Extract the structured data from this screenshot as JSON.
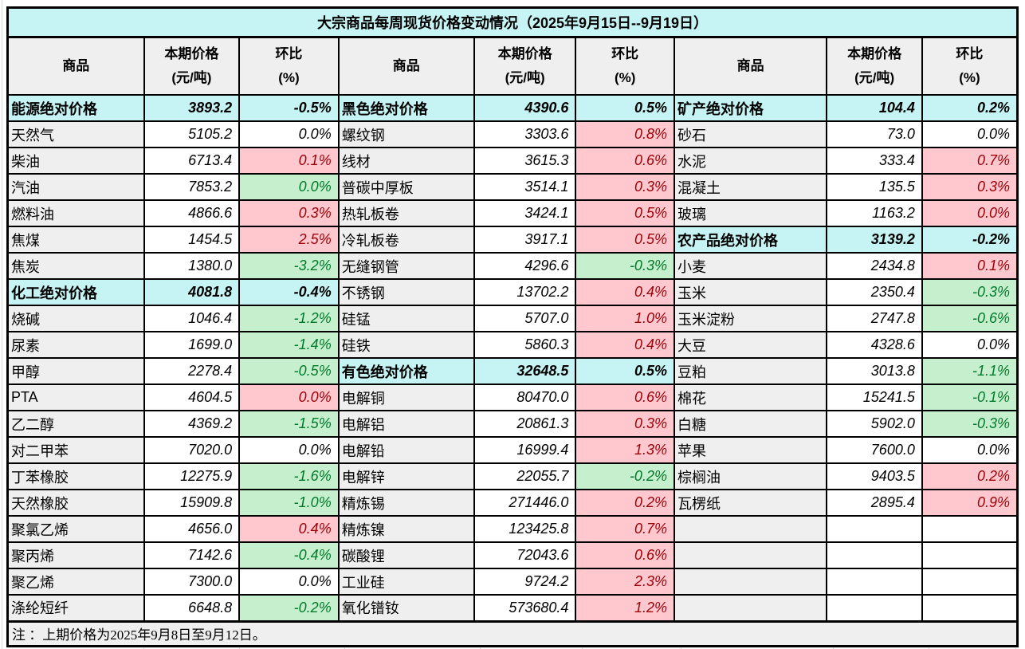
{
  "title": "大宗商品每周现货价格变动情况（2025年9月15日--9月19日）",
  "note": "注 ：上期价格为2025年9月8日至9月12日。",
  "columns": {
    "commodity": "商品",
    "price_line1": "本期价格",
    "price_line2": "(元/吨)",
    "pct_line1": "环比",
    "pct_line2": "(%)"
  },
  "colors": {
    "section_bg": "#c6f3f3",
    "header_bg": "#efefef",
    "up_bg": "#ffc7ce",
    "up_text": "#9c0006",
    "down_bg": "#c6efce",
    "down_text": "#007a29",
    "border": "#000000"
  },
  "groups": [
    {
      "rows": [
        {
          "name": "能源绝对价格",
          "price": "3893.2",
          "pct": "-0.5%",
          "type": "section",
          "pct_style": "section"
        },
        {
          "name": "天然气",
          "price": "5105.2",
          "pct": "0.0%",
          "type": "item",
          "pct_style": "flat"
        },
        {
          "name": "柴油",
          "price": "6713.4",
          "pct": "0.1%",
          "type": "item",
          "pct_style": "up"
        },
        {
          "name": "汽油",
          "price": "7853.2",
          "pct": "0.0%",
          "type": "item",
          "pct_style": "down"
        },
        {
          "name": "燃料油",
          "price": "4866.6",
          "pct": "0.3%",
          "type": "item",
          "pct_style": "up"
        },
        {
          "name": "焦煤",
          "price": "1454.5",
          "pct": "2.5%",
          "type": "item",
          "pct_style": "up"
        },
        {
          "name": "焦炭",
          "price": "1380.0",
          "pct": "-3.2%",
          "type": "item",
          "pct_style": "down"
        },
        {
          "name": "化工绝对价格",
          "price": "4081.8",
          "pct": "-0.4%",
          "type": "section",
          "pct_style": "section"
        },
        {
          "name": "烧碱",
          "price": "1046.4",
          "pct": "-1.2%",
          "type": "item",
          "pct_style": "down"
        },
        {
          "name": "尿素",
          "price": "1699.0",
          "pct": "-1.4%",
          "type": "item",
          "pct_style": "down"
        },
        {
          "name": "甲醇",
          "price": "2278.4",
          "pct": "-0.5%",
          "type": "item",
          "pct_style": "down"
        },
        {
          "name": "PTA",
          "price": "4604.5",
          "pct": "0.0%",
          "type": "item",
          "pct_style": "up"
        },
        {
          "name": "乙二醇",
          "price": "4369.2",
          "pct": "-1.5%",
          "type": "item",
          "pct_style": "down"
        },
        {
          "name": "对二甲苯",
          "price": "7020.0",
          "pct": "0.0%",
          "type": "item",
          "pct_style": "flat"
        },
        {
          "name": "丁苯橡胶",
          "price": "12275.9",
          "pct": "-1.6%",
          "type": "item",
          "pct_style": "down"
        },
        {
          "name": "天然橡胶",
          "price": "15909.8",
          "pct": "-1.0%",
          "type": "item",
          "pct_style": "down"
        },
        {
          "name": "聚氯乙烯",
          "price": "4656.0",
          "pct": "0.4%",
          "type": "item",
          "pct_style": "up"
        },
        {
          "name": "聚丙烯",
          "price": "7142.6",
          "pct": "-0.4%",
          "type": "item",
          "pct_style": "down"
        },
        {
          "name": "聚乙烯",
          "price": "7300.0",
          "pct": "0.0%",
          "type": "item",
          "pct_style": "flat"
        },
        {
          "name": "涤纶短纤",
          "price": "6648.8",
          "pct": "-0.2%",
          "type": "item",
          "pct_style": "down"
        }
      ]
    },
    {
      "rows": [
        {
          "name": "黑色绝对价格",
          "price": "4390.6",
          "pct": "0.5%",
          "type": "section",
          "pct_style": "section"
        },
        {
          "name": "螺纹钢",
          "price": "3303.6",
          "pct": "0.8%",
          "type": "item",
          "pct_style": "up"
        },
        {
          "name": "线材",
          "price": "3615.3",
          "pct": "0.6%",
          "type": "item",
          "pct_style": "up"
        },
        {
          "name": "普碳中厚板",
          "price": "3514.1",
          "pct": "0.3%",
          "type": "item",
          "pct_style": "up"
        },
        {
          "name": "热轧板卷",
          "price": "3424.1",
          "pct": "0.5%",
          "type": "item",
          "pct_style": "up"
        },
        {
          "name": "冷轧板卷",
          "price": "3917.1",
          "pct": "0.5%",
          "type": "item",
          "pct_style": "up"
        },
        {
          "name": "无缝钢管",
          "price": "4296.6",
          "pct": "-0.3%",
          "type": "item",
          "pct_style": "down"
        },
        {
          "name": "不锈钢",
          "price": "13702.2",
          "pct": "0.4%",
          "type": "item",
          "pct_style": "up"
        },
        {
          "name": "硅锰",
          "price": "5707.0",
          "pct": "1.0%",
          "type": "item",
          "pct_style": "up"
        },
        {
          "name": "硅铁",
          "price": "5860.3",
          "pct": "0.4%",
          "type": "item",
          "pct_style": "up"
        },
        {
          "name": "有色绝对价格",
          "price": "32648.5",
          "pct": "0.5%",
          "type": "section",
          "pct_style": "section"
        },
        {
          "name": "电解铜",
          "price": "80470.0",
          "pct": "0.6%",
          "type": "item",
          "pct_style": "up"
        },
        {
          "name": "电解铝",
          "price": "20861.3",
          "pct": "0.3%",
          "type": "item",
          "pct_style": "up"
        },
        {
          "name": "电解铅",
          "price": "16999.4",
          "pct": "1.3%",
          "type": "item",
          "pct_style": "up"
        },
        {
          "name": "电解锌",
          "price": "22055.7",
          "pct": "-0.2%",
          "type": "item",
          "pct_style": "down"
        },
        {
          "name": "精炼锡",
          "price": "271446.0",
          "pct": "0.2%",
          "type": "item",
          "pct_style": "up"
        },
        {
          "name": "精炼镍",
          "price": "123425.8",
          "pct": "0.7%",
          "type": "item",
          "pct_style": "up"
        },
        {
          "name": "碳酸锂",
          "price": "72043.6",
          "pct": "0.6%",
          "type": "item",
          "pct_style": "up"
        },
        {
          "name": "工业硅",
          "price": "9724.2",
          "pct": "2.3%",
          "type": "item",
          "pct_style": "up"
        },
        {
          "name": "氧化镨钕",
          "price": "573680.4",
          "pct": "1.2%",
          "type": "item",
          "pct_style": "up"
        }
      ]
    },
    {
      "rows": [
        {
          "name": "矿产绝对价格",
          "price": "104.4",
          "pct": "0.2%",
          "type": "section",
          "pct_style": "section"
        },
        {
          "name": "砂石",
          "price": "73.0",
          "pct": "0.0%",
          "type": "item",
          "pct_style": "flat"
        },
        {
          "name": "水泥",
          "price": "333.4",
          "pct": "0.7%",
          "type": "item",
          "pct_style": "up"
        },
        {
          "name": "混凝土",
          "price": "135.5",
          "pct": "0.3%",
          "type": "item",
          "pct_style": "up"
        },
        {
          "name": "玻璃",
          "price": "1163.2",
          "pct": "0.0%",
          "type": "item",
          "pct_style": "up"
        },
        {
          "name": "农产品绝对价格",
          "price": "3139.2",
          "pct": "-0.2%",
          "type": "section",
          "pct_style": "section"
        },
        {
          "name": "小麦",
          "price": "2434.8",
          "pct": "0.1%",
          "type": "item",
          "pct_style": "up"
        },
        {
          "name": "玉米",
          "price": "2350.4",
          "pct": "-0.3%",
          "type": "item",
          "pct_style": "down"
        },
        {
          "name": "玉米淀粉",
          "price": "2747.8",
          "pct": "-0.6%",
          "type": "item",
          "pct_style": "down"
        },
        {
          "name": "大豆",
          "price": "4328.6",
          "pct": "0.0%",
          "type": "item",
          "pct_style": "flat"
        },
        {
          "name": "豆粕",
          "price": "3013.8",
          "pct": "-1.1%",
          "type": "item",
          "pct_style": "down"
        },
        {
          "name": "棉花",
          "price": "15241.5",
          "pct": "-0.1%",
          "type": "item",
          "pct_style": "down"
        },
        {
          "name": "白糖",
          "price": "5902.0",
          "pct": "-0.3%",
          "type": "item",
          "pct_style": "down"
        },
        {
          "name": "苹果",
          "price": "7600.0",
          "pct": "0.0%",
          "type": "item",
          "pct_style": "flat"
        },
        {
          "name": "棕榈油",
          "price": "9403.5",
          "pct": "0.2%",
          "type": "item",
          "pct_style": "up"
        },
        {
          "name": "瓦楞纸",
          "price": "2895.4",
          "pct": "0.9%",
          "type": "item",
          "pct_style": "up"
        },
        {
          "name": "",
          "price": "",
          "pct": "",
          "type": "item",
          "pct_style": "flat"
        },
        {
          "name": "",
          "price": "",
          "pct": "",
          "type": "item",
          "pct_style": "flat"
        },
        {
          "name": "",
          "price": "",
          "pct": "",
          "type": "item",
          "pct_style": "flat"
        },
        {
          "name": "",
          "price": "",
          "pct": "",
          "type": "item",
          "pct_style": "flat"
        }
      ]
    }
  ]
}
